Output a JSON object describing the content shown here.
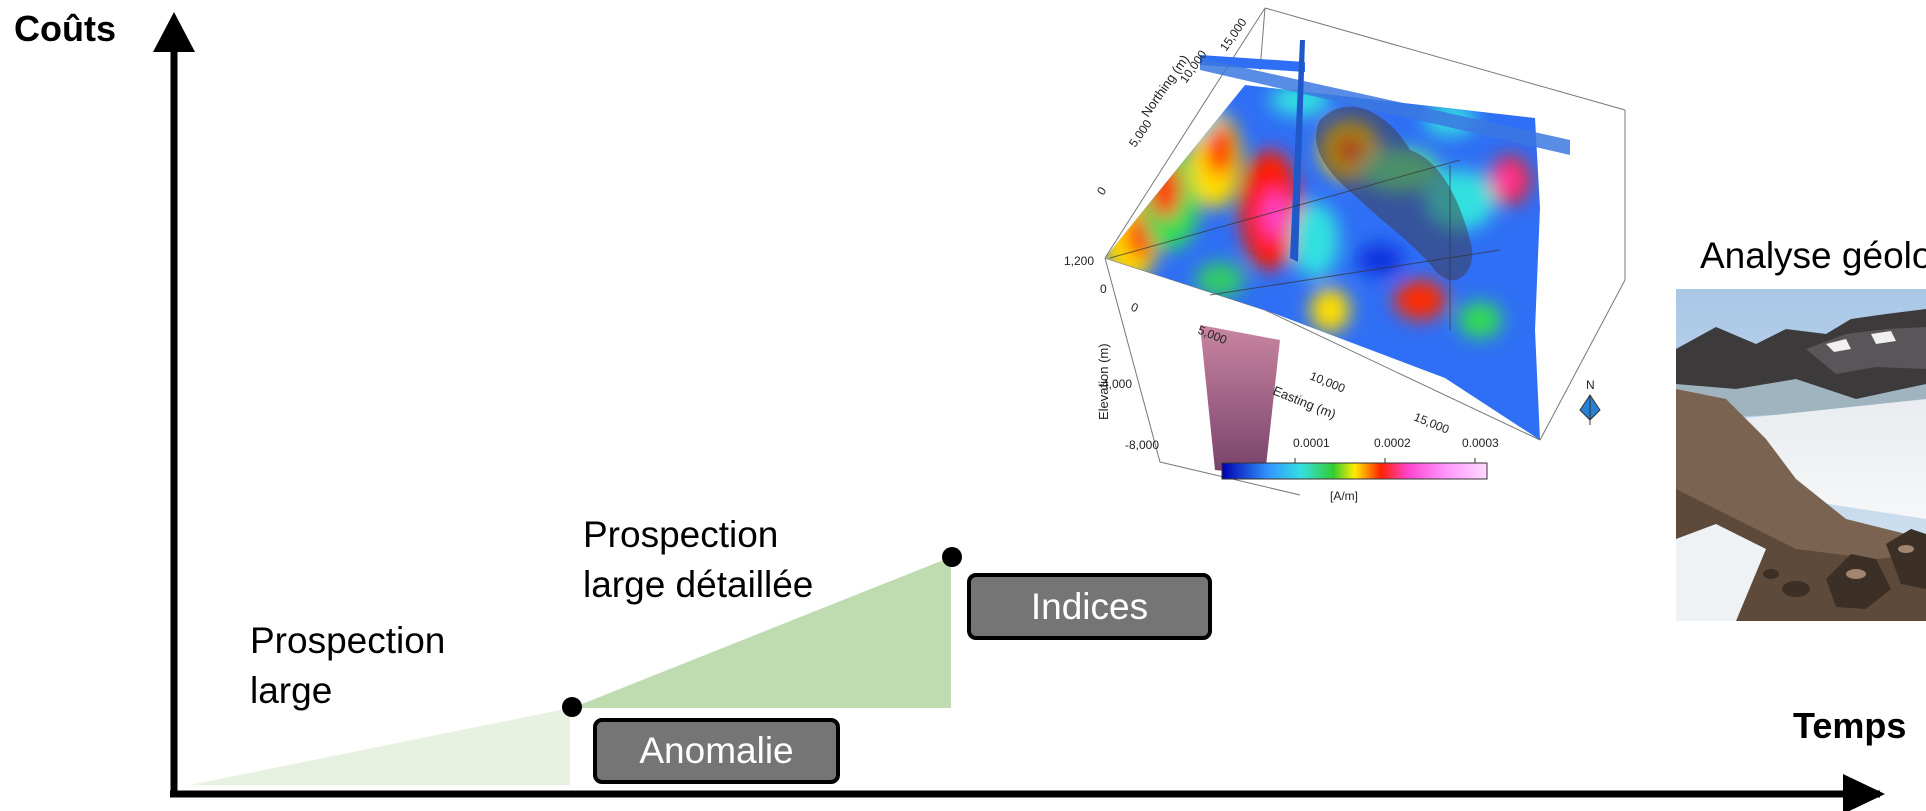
{
  "axes": {
    "y_label": "Coûts",
    "x_label": "Temps"
  },
  "stages": [
    {
      "label": "Prospection\nlarge",
      "box": "Anomalie"
    },
    {
      "label": "Prospection\nlarge détaillée",
      "box": "Indices"
    }
  ],
  "figure3d": {
    "northing_label": "Northing (m)",
    "northing_ticks": [
      "0",
      "5,000",
      "10,000",
      "15,000"
    ],
    "elevation_label": "Elevation (m)",
    "elevation_ticks": [
      "1,200",
      "0",
      "-4,000",
      "-8,000"
    ],
    "easting_label": "Easting (m)",
    "easting_ticks": [
      "0",
      "5,000",
      "10,000",
      "15,000"
    ],
    "colorbar_ticks": [
      "0.0001",
      "0.0002",
      "0.0003"
    ],
    "colorbar_unit": "[A/m]",
    "north_label": "N"
  },
  "photo": {
    "caption": "Analyse géolo"
  },
  "colors": {
    "stage1_fill": "#e6f2df",
    "stage2_fill": "#bfdcb0",
    "box_fill": "#757575"
  }
}
